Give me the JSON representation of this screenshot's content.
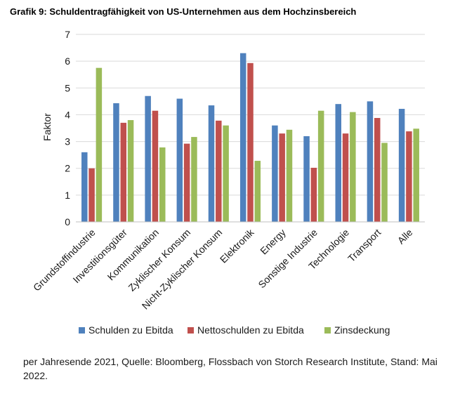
{
  "title": "Grafik 9: Schuldentragfähigkeit von US-Unternehmen aus dem Hochzinsbereich",
  "footnote": "per Jahresende 2021, Quelle: Bloomberg, Flossbach von Storch Research Institute, Stand: Mai 2022.",
  "colors": {
    "series": [
      "#4f81bd",
      "#c0504d",
      "#9bbb59"
    ],
    "grid": "#d9d9d9",
    "axis": "#bfbfbf",
    "text": "#1a1a1a"
  },
  "chart_data": {
    "type": "bar",
    "title": "Grafik 9: Schuldentragfähigkeit von US-Unternehmen aus dem Hochzinsbereich",
    "xlabel": "",
    "ylabel": "Faktor",
    "ylim": [
      0,
      7
    ],
    "yticks": [
      0,
      1,
      2,
      3,
      4,
      5,
      6,
      7
    ],
    "grid": true,
    "legend_position": "bottom",
    "categories": [
      "Grundstoffindustrie",
      "Investitionsgüter",
      "Kommunikation",
      "Zyklischer Konsum",
      "Nicht-Zyklischer Konsum",
      "Elektronik",
      "Energy",
      "Sonstige Industrie",
      "Technologie",
      "Transport",
      "Alle"
    ],
    "series": [
      {
        "name": "Schulden zu Ebitda",
        "values": [
          2.6,
          4.43,
          4.7,
          4.6,
          4.35,
          6.3,
          3.6,
          3.2,
          4.4,
          4.5,
          4.22
        ]
      },
      {
        "name": "Nettoschulden zu Ebitda",
        "values": [
          2.0,
          3.7,
          4.15,
          2.92,
          3.78,
          5.93,
          3.3,
          2.02,
          3.3,
          3.88,
          3.38
        ]
      },
      {
        "name": "Zinsdeckung",
        "values": [
          5.75,
          3.8,
          2.78,
          3.17,
          3.6,
          2.28,
          3.44,
          4.15,
          4.1,
          2.95,
          3.48
        ]
      }
    ]
  }
}
